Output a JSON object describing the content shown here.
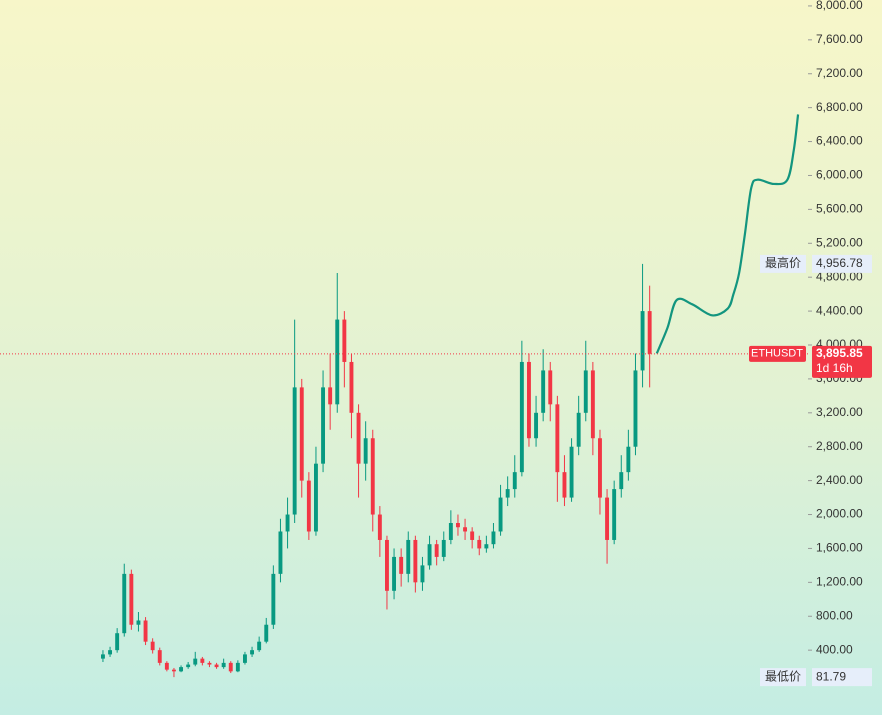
{
  "chart_data": {
    "type": "candlestick",
    "symbol": "ETHUSDT",
    "open": [
      300,
      350,
      400,
      600,
      1300,
      700,
      750,
      500,
      400,
      250,
      170,
      150,
      200,
      230,
      300,
      250,
      230,
      200,
      250,
      150,
      250,
      350,
      400,
      500,
      700,
      1300,
      1800,
      2000,
      3500,
      2400,
      1800,
      2600,
      3500,
      3300,
      4300,
      3800,
      3200,
      2600,
      2900,
      2000,
      1700,
      1100,
      1500,
      1300,
      1700,
      1200,
      1400,
      1650,
      1500,
      1700,
      1900,
      1850,
      1800,
      1700,
      1600,
      1650,
      1800,
      2200,
      2300,
      2500,
      3800,
      2900,
      3200,
      3700,
      3300,
      2500,
      2200,
      2800,
      3200,
      3700,
      2900,
      2200,
      1700,
      2300,
      2500,
      2800,
      3700,
      4400
    ],
    "high": [
      400,
      440,
      660,
      1420,
      1350,
      850,
      790,
      540,
      430,
      270,
      190,
      220,
      260,
      380,
      320,
      270,
      250,
      300,
      270,
      280,
      380,
      440,
      560,
      780,
      1400,
      1950,
      2200,
      4300,
      3600,
      2500,
      2800,
      3700,
      3900,
      4850,
      4400,
      3900,
      3300,
      3100,
      3000,
      2100,
      1750,
      1600,
      1600,
      1800,
      1750,
      1500,
      1750,
      1700,
      1800,
      2050,
      2000,
      1950,
      1850,
      1750,
      1750,
      1900,
      2350,
      2450,
      2700,
      4050,
      3900,
      3400,
      3950,
      3800,
      3400,
      2700,
      2900,
      3400,
      4050,
      3800,
      3000,
      2300,
      2400,
      2700,
      3000,
      3900,
      4956.78,
      4700
    ],
    "low": [
      260,
      320,
      370,
      560,
      640,
      620,
      460,
      360,
      220,
      150,
      81.79,
      140,
      180,
      210,
      220,
      200,
      180,
      180,
      130,
      140,
      230,
      320,
      380,
      480,
      650,
      1200,
      1600,
      1900,
      2200,
      1700,
      1750,
      2500,
      3000,
      3200,
      3500,
      2900,
      2200,
      2400,
      1800,
      1500,
      880,
      1000,
      1150,
      1200,
      1080,
      1100,
      1350,
      1400,
      1450,
      1650,
      1750,
      1700,
      1600,
      1520,
      1550,
      1600,
      1750,
      2100,
      2200,
      2450,
      2800,
      2800,
      3100,
      3100,
      2150,
      2100,
      2150,
      2700,
      3100,
      2700,
      2000,
      1420,
      1650,
      2200,
      2400,
      2700,
      3500,
      3500
    ],
    "close": [
      350,
      400,
      600,
      1300,
      700,
      750,
      500,
      400,
      250,
      170,
      150,
      200,
      230,
      300,
      250,
      230,
      200,
      250,
      150,
      250,
      350,
      400,
      500,
      700,
      1300,
      1800,
      2000,
      3500,
      2400,
      1800,
      2600,
      3500,
      3300,
      4300,
      3800,
      3200,
      2600,
      2900,
      2000,
      1700,
      1100,
      1500,
      1300,
      1700,
      1200,
      1400,
      1650,
      1500,
      1700,
      1900,
      1850,
      1800,
      1700,
      1600,
      1650,
      1800,
      2200,
      2300,
      2500,
      3800,
      2900,
      3200,
      3700,
      3300,
      2500,
      2200,
      2800,
      3200,
      3700,
      2900,
      2200,
      1700,
      2300,
      2500,
      2800,
      3700,
      4400,
      3895.85
    ],
    "colors": {
      "up": "#089981",
      "down": "#f23645"
    },
    "xlim": [
      -14.5,
      99.3
    ],
    "ylim": [
      -365,
      8070
    ],
    "yticks": [
      {
        "value": 400,
        "label": "400.00"
      },
      {
        "value": 800,
        "label": "800.00"
      },
      {
        "value": 1200,
        "label": "1,200.00"
      },
      {
        "value": 1600,
        "label": "1,600.00"
      },
      {
        "value": 2000,
        "label": "2,000.00"
      },
      {
        "value": 2400,
        "label": "2,400.00"
      },
      {
        "value": 2800,
        "label": "2,800.00"
      },
      {
        "value": 3200,
        "label": "3,200.00"
      },
      {
        "value": 3600,
        "label": "3,600.00"
      },
      {
        "value": 4000,
        "label": "4,000.00"
      },
      {
        "value": 4400,
        "label": "4,400.00"
      },
      {
        "value": 4800,
        "label": "4,800.00"
      },
      {
        "value": 5200,
        "label": "5,200.00"
      },
      {
        "value": 5600,
        "label": "5,600.00"
      },
      {
        "value": 6000,
        "label": "6,000.00"
      },
      {
        "value": 6400,
        "label": "6,400.00"
      },
      {
        "value": 6800,
        "label": "6,800.00"
      },
      {
        "value": 7200,
        "label": "7,200.00"
      },
      {
        "value": 7600,
        "label": "7,600.00"
      },
      {
        "value": 8000,
        "label": "8,000.00"
      }
    ],
    "last_price": {
      "value": 3895.85,
      "label": "3,895.85",
      "countdown": "1d 16h"
    },
    "high_marker": {
      "name": "最高价",
      "value": 4956.78,
      "label": "4,956.78"
    },
    "low_marker": {
      "name": "最低价",
      "value": 81.79,
      "label": "81.79"
    },
    "projection": {
      "color": "#13957f",
      "x": [
        78,
        79.5,
        80.8,
        83,
        85.8,
        88,
        88.8,
        89.6,
        90.4,
        91.3,
        92.2,
        94.5,
        96.4,
        97.3,
        97.9
      ],
      "values": [
        3900,
        4200,
        4530,
        4480,
        4350,
        4430,
        4600,
        4850,
        5300,
        5850,
        5950,
        5900,
        5950,
        6300,
        6720
      ]
    }
  }
}
